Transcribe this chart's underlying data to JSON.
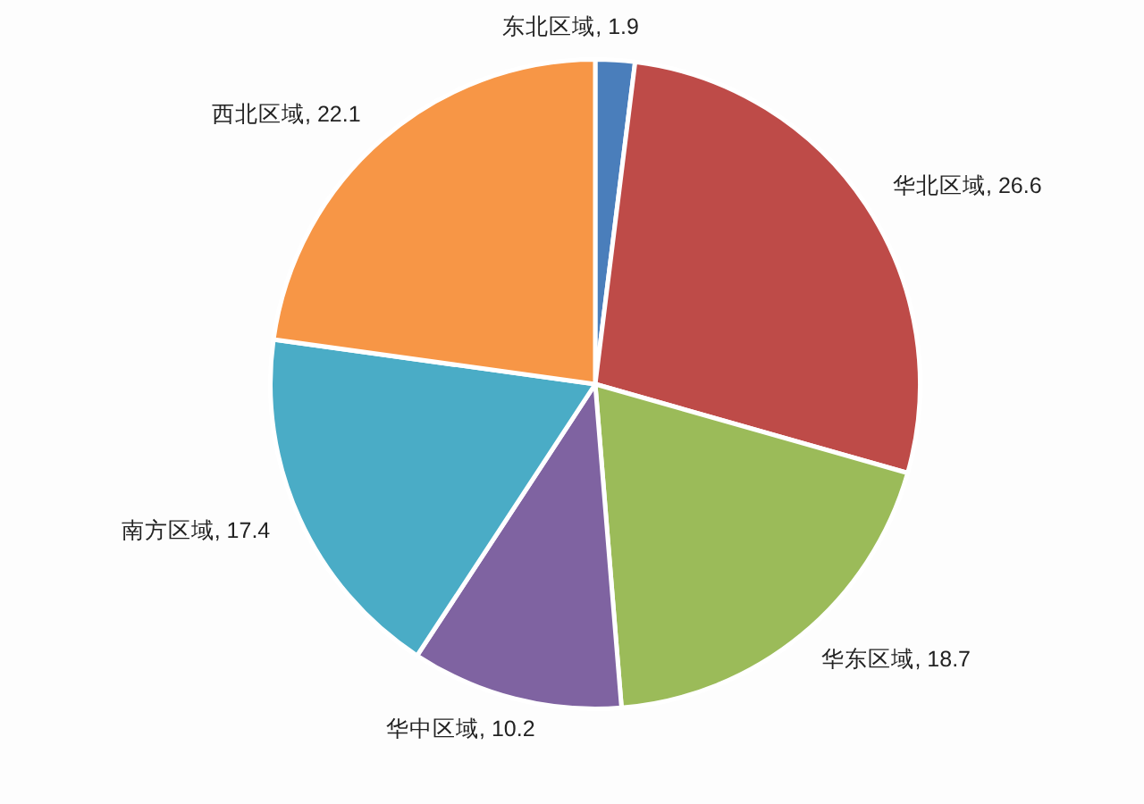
{
  "chart_data": {
    "type": "pie",
    "categories": [
      "东北区域",
      "华北区域",
      "华东区域",
      "华中区域",
      "南方区域",
      "西北区域"
    ],
    "values": [
      1.9,
      26.6,
      18.7,
      10.2,
      17.4,
      22.1
    ],
    "value_labels": [
      ", 1.9",
      ", 26.6",
      ", 18.7",
      ", 10.2",
      ", 17.4",
      ", 22.1"
    ],
    "colors": [
      "#4a7ebb",
      "#be4b48",
      "#9bbb59",
      "#7f63a1",
      "#4aacc6",
      "#f79646"
    ]
  }
}
